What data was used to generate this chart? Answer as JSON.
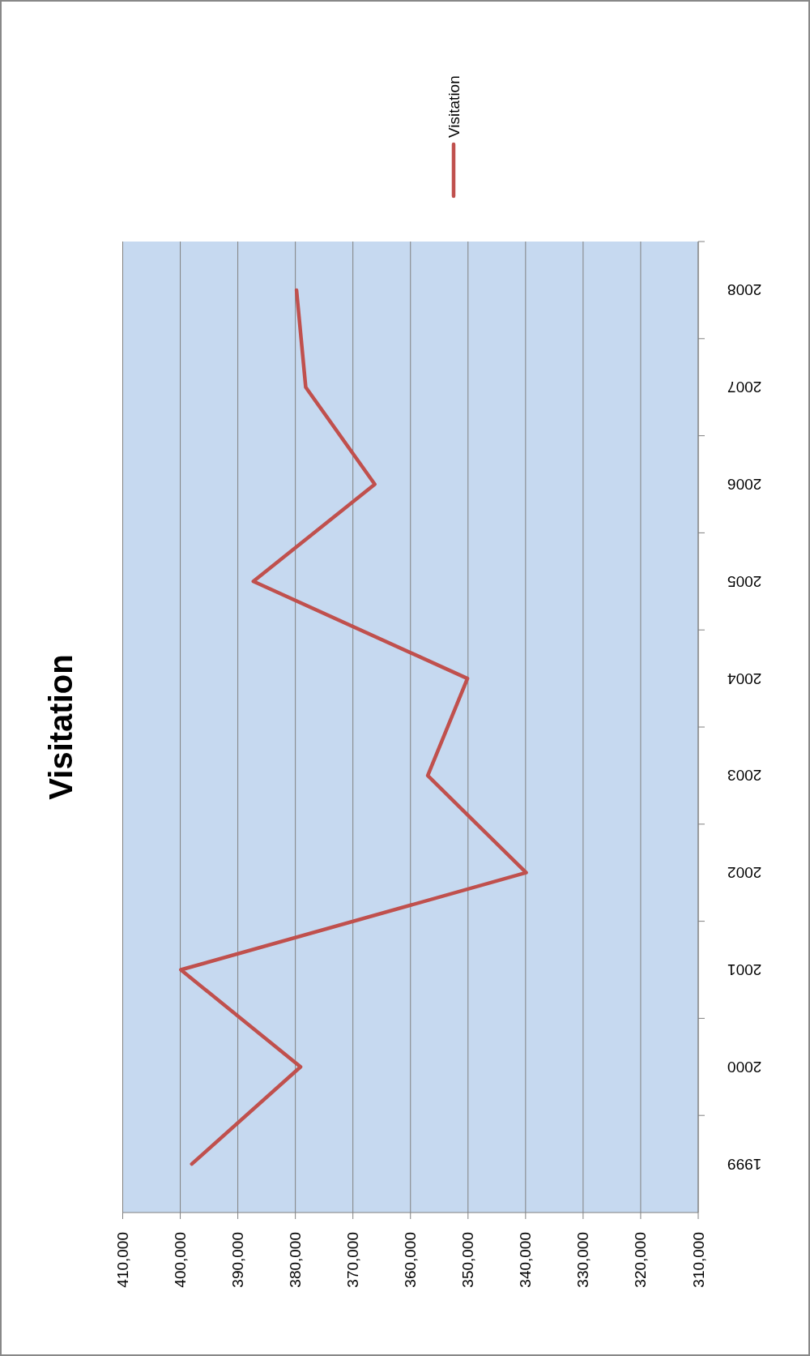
{
  "chart_data": {
    "type": "line",
    "title": "Visitation",
    "categories": [
      "2008",
      "2007",
      "2006",
      "2005",
      "2004",
      "2003",
      "2002",
      "2001",
      "2000",
      "1999"
    ],
    "series": [
      {
        "name": "Visitation",
        "color": "#c0504d",
        "values": [
          379800,
          378200,
          366200,
          387300,
          350100,
          357000,
          339900,
          399900,
          379100,
          398000
        ]
      }
    ],
    "orientation": "horizontal",
    "xlim": [
      410000,
      310000
    ],
    "xticks": [
      {
        "value": 310000,
        "label": "310,000"
      },
      {
        "value": 320000,
        "label": "320,000"
      },
      {
        "value": 330000,
        "label": "330,000"
      },
      {
        "value": 340000,
        "label": "340,000"
      },
      {
        "value": 350000,
        "label": "350,000"
      },
      {
        "value": 360000,
        "label": "360,000"
      },
      {
        "value": 370000,
        "label": "370,000"
      },
      {
        "value": 380000,
        "label": "380,000"
      },
      {
        "value": 390000,
        "label": "390,000"
      },
      {
        "value": 400000,
        "label": "400,000"
      },
      {
        "value": 410000,
        "label": "410,000"
      }
    ],
    "grid": "x",
    "legend": "right",
    "marker": "none",
    "line_style": "solid"
  }
}
